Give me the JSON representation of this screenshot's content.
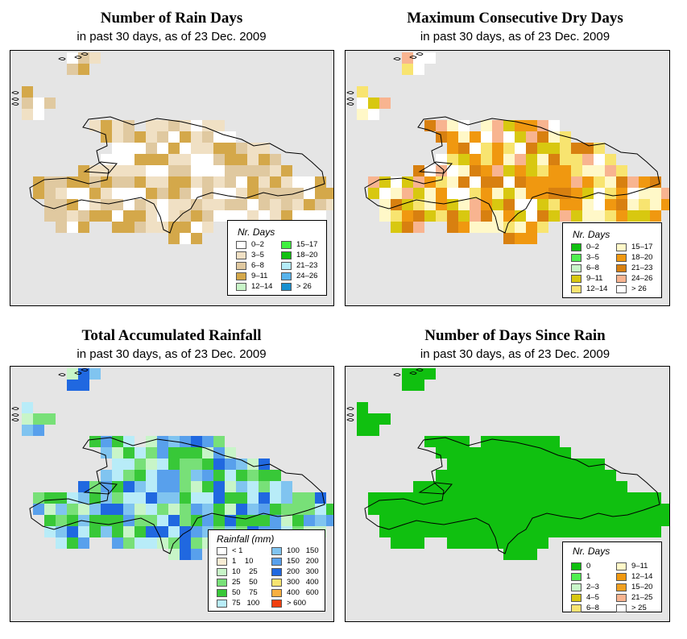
{
  "panels": [
    {
      "title": "Number of Rain Days",
      "subtitle": "in past 30 days, as of  23 Dec. 2009",
      "legend_title": "Nr. Days",
      "legend": [
        {
          "label": "0–2",
          "color": "#ffffff"
        },
        {
          "label": "3–5",
          "color": "#f0e0c4"
        },
        {
          "label": "6–8",
          "color": "#e0c9a0"
        },
        {
          "label": "9–11",
          "color": "#d4a84a"
        },
        {
          "label": "12–14",
          "color": "#c8f5c8"
        },
        {
          "label": "15–17",
          "color": "#40f040"
        },
        {
          "label": "18–20",
          "color": "#10c010"
        },
        {
          "label": "21–23",
          "color": "#b4ecf8"
        },
        {
          "label": "24–26",
          "color": "#58b4ec"
        },
        {
          "label": "> 26",
          "color": "#1890d0"
        }
      ],
      "palette": [
        "#ffffff",
        "#f0e0c4",
        "#e0c9a0",
        "#d4a84a"
      ]
    },
    {
      "title": "Maximum Consecutive Dry Days",
      "subtitle": "in past 30 days, as of  23 Dec. 2009",
      "legend_title": "Nr. Days",
      "legend": [
        {
          "label": "0–2",
          "color": "#10c010"
        },
        {
          "label": "3–5",
          "color": "#50f050"
        },
        {
          "label": "6–8",
          "color": "#c8f5c8"
        },
        {
          "label": "9–11",
          "color": "#d8c810"
        },
        {
          "label": "12–14",
          "color": "#f8e470"
        },
        {
          "label": "15–17",
          "color": "#fff8c8"
        },
        {
          "label": "18–20",
          "color": "#f09810"
        },
        {
          "label": "21–23",
          "color": "#d88010"
        },
        {
          "label": "24–26",
          "color": "#f8b490"
        },
        {
          "label": "> 26",
          "color": "#ffffff"
        }
      ],
      "palette": [
        "#f8e470",
        "#fff8c8",
        "#f09810",
        "#d88010",
        "#f8b490",
        "#d8c810",
        "#ffffff"
      ]
    },
    {
      "title": "Total Accumulated Rainfall",
      "subtitle": "in past 30 days, as of  23 Dec. 2009",
      "legend_title": "Rainfall (mm)",
      "legend": [
        {
          "label": "< 1",
          "color": "#ffffff"
        },
        {
          "label": "1    10",
          "color": "#f8ecd4"
        },
        {
          "label": "10    25",
          "color": "#c8f5c8"
        },
        {
          "label": "25    50",
          "color": "#78e078"
        },
        {
          "label": "50    75",
          "color": "#38c838"
        },
        {
          "label": "75   100",
          "color": "#b8ecf8"
        },
        {
          "label": "100   150",
          "color": "#80c4f0"
        },
        {
          "label": "150   200",
          "color": "#58a0ec"
        },
        {
          "label": "200   300",
          "color": "#2068e0"
        },
        {
          "label": "300   400",
          "color": "#f8e470"
        },
        {
          "label": "400   600",
          "color": "#f8b040"
        },
        {
          "label": "> 600",
          "color": "#f04010"
        }
      ],
      "palette": [
        "#c8f5c8",
        "#78e078",
        "#38c838",
        "#b8ecf8",
        "#80c4f0",
        "#58a0ec",
        "#2068e0"
      ]
    },
    {
      "title": "Number of Days Since Rain",
      "subtitle": "in past 30 days, as of  23 Dec. 2009",
      "legend_title": "Nr. Days",
      "legend": [
        {
          "label": "0",
          "color": "#10c010"
        },
        {
          "label": "1",
          "color": "#50f050"
        },
        {
          "label": "2–3",
          "color": "#c8f5c8"
        },
        {
          "label": "4–5",
          "color": "#d8c810"
        },
        {
          "label": "6–8",
          "color": "#f8e470"
        },
        {
          "label": "9–11",
          "color": "#fff8c8"
        },
        {
          "label": "12–14",
          "color": "#f09810"
        },
        {
          "label": "15–20",
          "color": "#f0a020"
        },
        {
          "label": "21–25",
          "color": "#f8b490"
        },
        {
          "label": "> 25",
          "color": "#ffffff"
        }
      ],
      "palette": [
        "#10c010"
      ]
    }
  ]
}
